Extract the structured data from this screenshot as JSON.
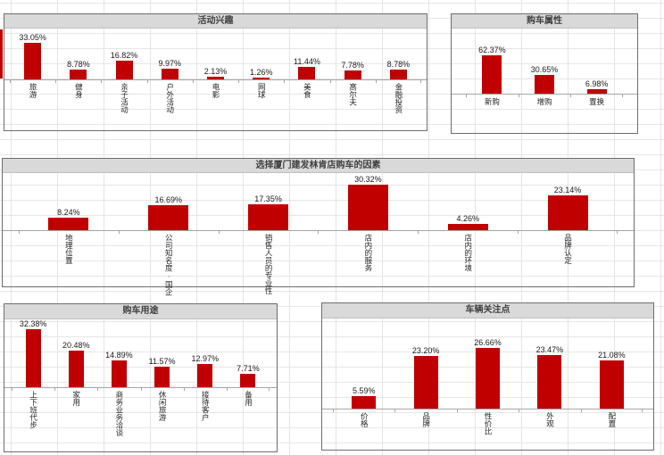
{
  "colors": {
    "bar": "#C00000",
    "chart_border": "#6E6E6E",
    "title_background": "#D9D9D9",
    "gridline": "#E4E4E4",
    "axis_line": "#A6A6A6",
    "label_text": "#1A1A1A"
  },
  "chart_data": [
    {
      "type": "bar",
      "title": "活动兴趣",
      "categories": [
        "旅游",
        "健身",
        "亲子活动",
        "户外活动",
        "电影",
        "网球",
        "美食",
        "高尔夫",
        "金融投资"
      ],
      "values": [
        33.05,
        8.78,
        16.82,
        9.97,
        2.13,
        1.26,
        11.44,
        7.78,
        8.78
      ],
      "data_labels": [
        "33.05%",
        "8.78%",
        "16.82%",
        "9.97%",
        "2.13%",
        "1.26%",
        "11.44%",
        "7.78%",
        "8.78%"
      ],
      "ylim": [
        0,
        40
      ],
      "grid": false,
      "legend": false,
      "category_label_orientation": "vertical"
    },
    {
      "type": "bar",
      "title": "购车属性",
      "categories": [
        "新购",
        "增购",
        "置换"
      ],
      "values": [
        62.37,
        30.65,
        6.98
      ],
      "data_labels": [
        "62.37%",
        "30.65%",
        "6.98%"
      ],
      "ylim": [
        0,
        80
      ],
      "grid": false,
      "legend": false,
      "category_label_orientation": "horizontal"
    },
    {
      "type": "bar",
      "title": "选择厦门建发林肯店购车的因素",
      "categories": [
        "地理位置",
        "公司知名度·国企",
        "销售人员的专业性",
        "店内的服务",
        "店内的环境",
        "品牌认定"
      ],
      "values": [
        8.24,
        16.69,
        17.35,
        30.32,
        4.26,
        23.14
      ],
      "data_labels": [
        "8.24%",
        "16.69%",
        "17.35%",
        "30.32%",
        "4.26%",
        "23.14%"
      ],
      "ylim": [
        0,
        35
      ],
      "grid": false,
      "legend": false,
      "category_label_orientation": "vertical"
    },
    {
      "type": "bar",
      "title": "购车用途",
      "categories": [
        "上下班代步",
        "家用",
        "商务业务洽谈",
        "休闲旅游",
        "接待客户",
        "备用"
      ],
      "values": [
        32.38,
        20.48,
        14.89,
        11.57,
        12.97,
        7.71
      ],
      "data_labels": [
        "32.38%",
        "20.48%",
        "14.89%",
        "11.57%",
        "12.97%",
        "7.71%"
      ],
      "ylim": [
        0,
        38
      ],
      "grid": false,
      "legend": false,
      "category_label_orientation": "vertical"
    },
    {
      "type": "bar",
      "title": "车辆关注点",
      "categories": [
        "价格",
        "品牌",
        "性价比",
        "外观",
        "配置"
      ],
      "values": [
        5.59,
        23.2,
        26.66,
        23.47,
        21.08
      ],
      "data_labels": [
        "5.59%",
        "23.20%",
        "26.66%",
        "23.47%",
        "21.08%"
      ],
      "ylim": [
        0,
        40
      ],
      "grid": false,
      "legend": false,
      "category_label_orientation": "vertical"
    }
  ]
}
